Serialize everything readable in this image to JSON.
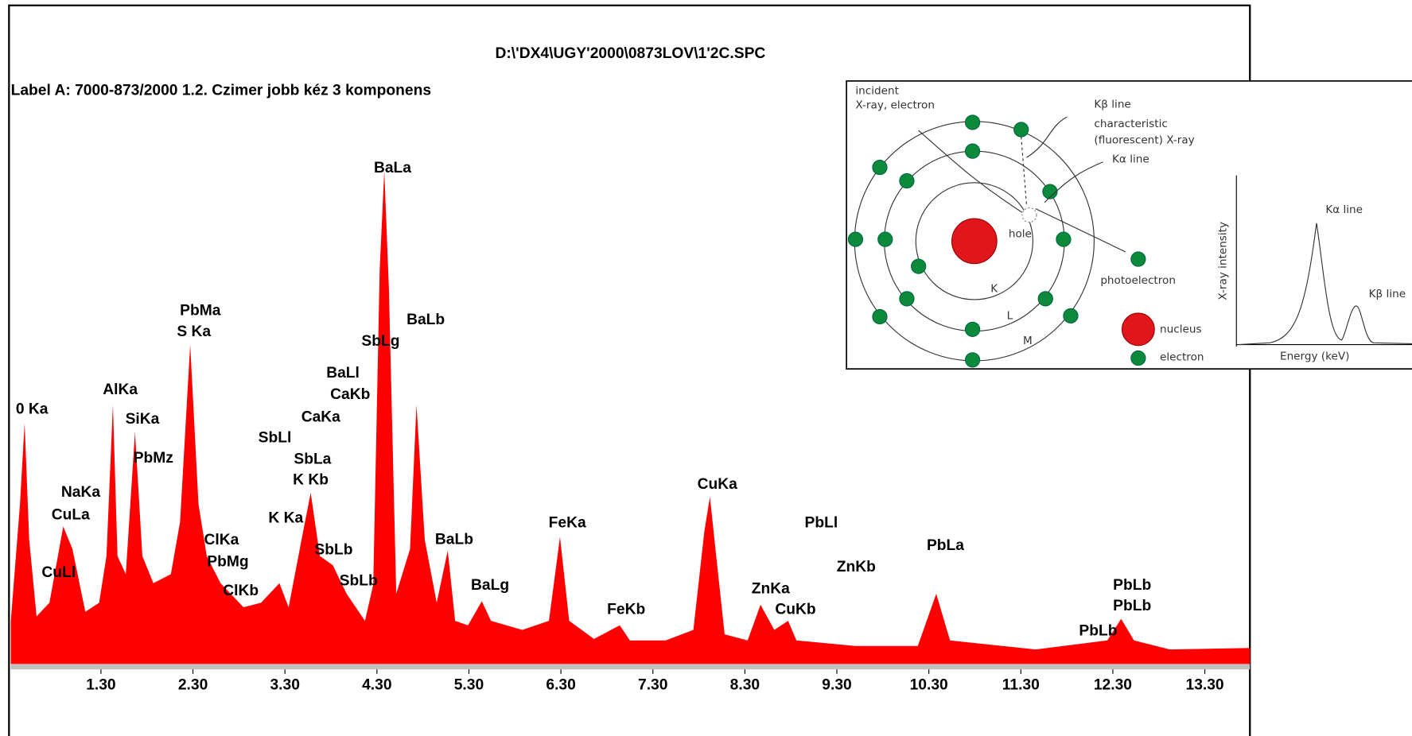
{
  "chart_data": {
    "type": "area",
    "title": "D:\\'DX4\\UGY'2000\\0873LOV\\1'2C.SPC",
    "subtitle": "Label A: 7000-873/2000  1.2. Czimer jobb kéz 3 komponens",
    "color": "#ff0000",
    "x": [
      0.32,
      0.42,
      0.47,
      0.52,
      0.6,
      0.74,
      0.89,
      0.99,
      1.13,
      1.28,
      1.36,
      1.43,
      1.48,
      1.57,
      1.67,
      1.75,
      1.87,
      2.06,
      2.16,
      2.27,
      2.36,
      2.45,
      2.6,
      2.85,
      3.04,
      3.24,
      3.34,
      3.48,
      3.58,
      3.68,
      3.82,
      3.97,
      4.17,
      4.26,
      4.33,
      4.38,
      4.43,
      4.51,
      4.66,
      4.73,
      4.82,
      4.95,
      5.07,
      5.15,
      5.29,
      5.44,
      5.54,
      5.88,
      6.17,
      6.29,
      6.39,
      6.66,
      6.94,
      7.05,
      7.44,
      7.74,
      7.86,
      7.92,
      7.98,
      8.08,
      8.33,
      8.47,
      8.62,
      8.77,
      8.86,
      9.5,
      10.18,
      10.38,
      10.53,
      11.46,
      12.24,
      12.39,
      12.53,
      12.92,
      13.79
    ],
    "values": [
      8.6,
      31.9,
      48.0,
      24.7,
      9.5,
      12.2,
      27.4,
      22.9,
      10.4,
      12.2,
      21.5,
      51.6,
      21.5,
      17.9,
      46.2,
      21.5,
      16.1,
      17.9,
      28.3,
      63.6,
      31.9,
      21.5,
      16.1,
      11.3,
      12.2,
      16.1,
      11.3,
      24.7,
      34.1,
      21.5,
      19.7,
      14.0,
      8.6,
      15.8,
      78.5,
      98.2,
      74.9,
      14.0,
      22.9,
      51.6,
      24.7,
      12.2,
      22.6,
      8.6,
      7.7,
      12.5,
      8.6,
      6.8,
      8.6,
      25.3,
      8.6,
      5.0,
      7.7,
      4.7,
      4.7,
      6.8,
      26.5,
      33.3,
      22.9,
      5.9,
      4.7,
      11.8,
      6.8,
      8.6,
      4.7,
      3.6,
      3.6,
      14.0,
      4.7,
      2.9,
      4.7,
      9.0,
      4.7,
      2.9,
      3.2
    ],
    "xlim": [
      0.32,
      13.79
    ],
    "ylim": [
      0,
      100
    ],
    "xticks": [
      {
        "value": 1.3,
        "label": "1.30"
      },
      {
        "value": 2.3,
        "label": "2.30"
      },
      {
        "value": 3.3,
        "label": "3.30"
      },
      {
        "value": 4.3,
        "label": "4.30"
      },
      {
        "value": 5.3,
        "label": "5.30"
      },
      {
        "value": 6.3,
        "label": "6.30"
      },
      {
        "value": 7.3,
        "label": "7.30"
      },
      {
        "value": 8.3,
        "label": "8.30"
      },
      {
        "value": 9.3,
        "label": "9.30"
      },
      {
        "value": 10.3,
        "label": "10.30"
      },
      {
        "value": 11.3,
        "label": "11.30"
      },
      {
        "value": 12.3,
        "label": "12.30"
      },
      {
        "value": 13.3,
        "label": "13.30"
      }
    ],
    "annotations": [
      {
        "text": "0 Ka",
        "x": 0.55,
        "y": 50.7
      },
      {
        "text": "NaKa",
        "x": 1.08,
        "y": 34.1
      },
      {
        "text": "CuLa",
        "x": 0.97,
        "y": 29.6
      },
      {
        "text": "CuLl",
        "x": 0.84,
        "y": 18.1
      },
      {
        "text": "AlKa",
        "x": 1.51,
        "y": 54.5
      },
      {
        "text": "SiKa",
        "x": 1.75,
        "y": 48.7
      },
      {
        "text": "PbMz",
        "x": 1.87,
        "y": 40.9
      },
      {
        "text": "PbMa",
        "x": 2.38,
        "y": 70.3
      },
      {
        "text": "S Ka",
        "x": 2.31,
        "y": 66.1
      },
      {
        "text": "ClKa",
        "x": 2.61,
        "y": 24.6
      },
      {
        "text": "PbMg",
        "x": 2.68,
        "y": 20.3
      },
      {
        "text": "ClKb",
        "x": 2.82,
        "y": 14.5
      },
      {
        "text": "SbLl",
        "x": 3.19,
        "y": 45.0
      },
      {
        "text": "CaKa",
        "x": 3.69,
        "y": 49.1
      },
      {
        "text": "BaLl",
        "x": 3.93,
        "y": 57.9
      },
      {
        "text": "CaKb",
        "x": 4.01,
        "y": 53.6
      },
      {
        "text": "SbLa",
        "x": 3.6,
        "y": 40.7
      },
      {
        "text": "K Kb",
        "x": 3.58,
        "y": 36.6
      },
      {
        "text": "K Ka",
        "x": 3.31,
        "y": 29.0
      },
      {
        "text": "SbLb",
        "x": 3.83,
        "y": 22.6
      },
      {
        "text": "SbLb",
        "x": 4.1,
        "y": 16.5
      },
      {
        "text": "SbLg",
        "x": 4.34,
        "y": 64.2
      },
      {
        "text": "BaLa",
        "x": 4.47,
        "y": 98.7
      },
      {
        "text": "BaLb",
        "x": 4.83,
        "y": 68.5
      },
      {
        "text": "BaLb",
        "x": 5.14,
        "y": 24.7
      },
      {
        "text": "BaLg",
        "x": 5.53,
        "y": 15.6
      },
      {
        "text": "FeKa",
        "x": 6.37,
        "y": 28.0
      },
      {
        "text": "FeKb",
        "x": 7.01,
        "y": 10.8
      },
      {
        "text": "CuKa",
        "x": 8.0,
        "y": 35.7
      },
      {
        "text": "ZnKa",
        "x": 8.58,
        "y": 14.9
      },
      {
        "text": "CuKb",
        "x": 8.85,
        "y": 10.8
      },
      {
        "text": "PbLl",
        "x": 9.13,
        "y": 28.0
      },
      {
        "text": "ZnKb",
        "x": 9.51,
        "y": 19.2
      },
      {
        "text": "PbLa",
        "x": 10.48,
        "y": 23.5
      },
      {
        "text": "PbLb",
        "x": 12.51,
        "y": 15.6
      },
      {
        "text": "PbLb",
        "x": 12.51,
        "y": 11.5
      },
      {
        "text": "PbLb",
        "x": 12.14,
        "y": 6.5
      }
    ]
  },
  "inset": {
    "incident": [
      "incident",
      "X-ray, electron"
    ],
    "kbeta": "Kβ line",
    "characteristic": [
      "characteristic",
      "(fluorescent) X-ray"
    ],
    "kalpha": "Kα line",
    "hole": "hole",
    "photoelectron": "photoelectron",
    "shells": [
      "K",
      "L",
      "M"
    ],
    "nucleus": "nucleus",
    "electron": "electron",
    "ylabel": "X-ray intensity",
    "xlabel": "Energy (keV)",
    "peak_alpha": "Kα line",
    "peak_beta": "Kβ line"
  }
}
